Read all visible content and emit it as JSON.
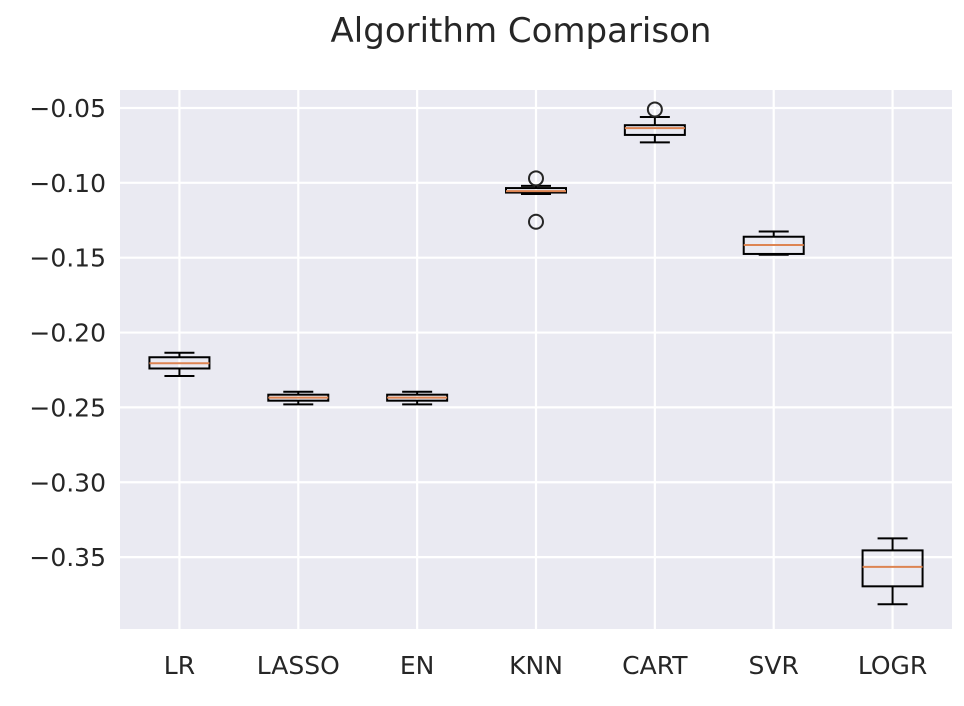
{
  "chart_data": {
    "type": "boxplot",
    "title": "Algorithm Comparison",
    "xlabel": "",
    "ylabel": "",
    "categories": [
      "LR",
      "LASSO",
      "EN",
      "KNN",
      "CART",
      "SVR",
      "LOGR"
    ],
    "ylim": [
      -0.398,
      -0.038
    ],
    "yticks": [
      -0.05,
      -0.1,
      -0.15,
      -0.2,
      -0.25,
      -0.3,
      -0.35
    ],
    "ytick_labels": [
      "−0.05",
      "−0.10",
      "−0.15",
      "−0.20",
      "−0.25",
      "−0.30",
      "−0.35"
    ],
    "grid": true,
    "boxes": [
      {
        "category": "LR",
        "whisker_low": -0.229,
        "q1": -0.224,
        "median": -0.2205,
        "q3": -0.2165,
        "whisker_high": -0.2135,
        "outliers": []
      },
      {
        "category": "LASSO",
        "whisker_low": -0.248,
        "q1": -0.2455,
        "median": -0.2435,
        "q3": -0.2415,
        "whisker_high": -0.2395,
        "outliers": []
      },
      {
        "category": "EN",
        "whisker_low": -0.248,
        "q1": -0.2455,
        "median": -0.2435,
        "q3": -0.2415,
        "whisker_high": -0.2395,
        "outliers": []
      },
      {
        "category": "KNN",
        "whisker_low": -0.1075,
        "q1": -0.1065,
        "median": -0.1055,
        "q3": -0.1035,
        "whisker_high": -0.102,
        "outliers": [
          -0.097,
          -0.126
        ]
      },
      {
        "category": "CART",
        "whisker_low": -0.073,
        "q1": -0.068,
        "median": -0.0635,
        "q3": -0.0615,
        "whisker_high": -0.056,
        "outliers": [
          -0.051
        ]
      },
      {
        "category": "SVR",
        "whisker_low": -0.148,
        "q1": -0.1475,
        "median": -0.1415,
        "q3": -0.136,
        "whisker_high": -0.1325,
        "outliers": []
      },
      {
        "category": "LOGR",
        "whisker_low": -0.3815,
        "q1": -0.3695,
        "median": -0.3565,
        "q3": -0.3455,
        "whisker_high": -0.3375,
        "outliers": []
      }
    ],
    "colors": {
      "background": "#eaeaf2",
      "grid": "#ffffff",
      "box": "#000000",
      "median": "#dd8452",
      "text": "#262626"
    }
  }
}
